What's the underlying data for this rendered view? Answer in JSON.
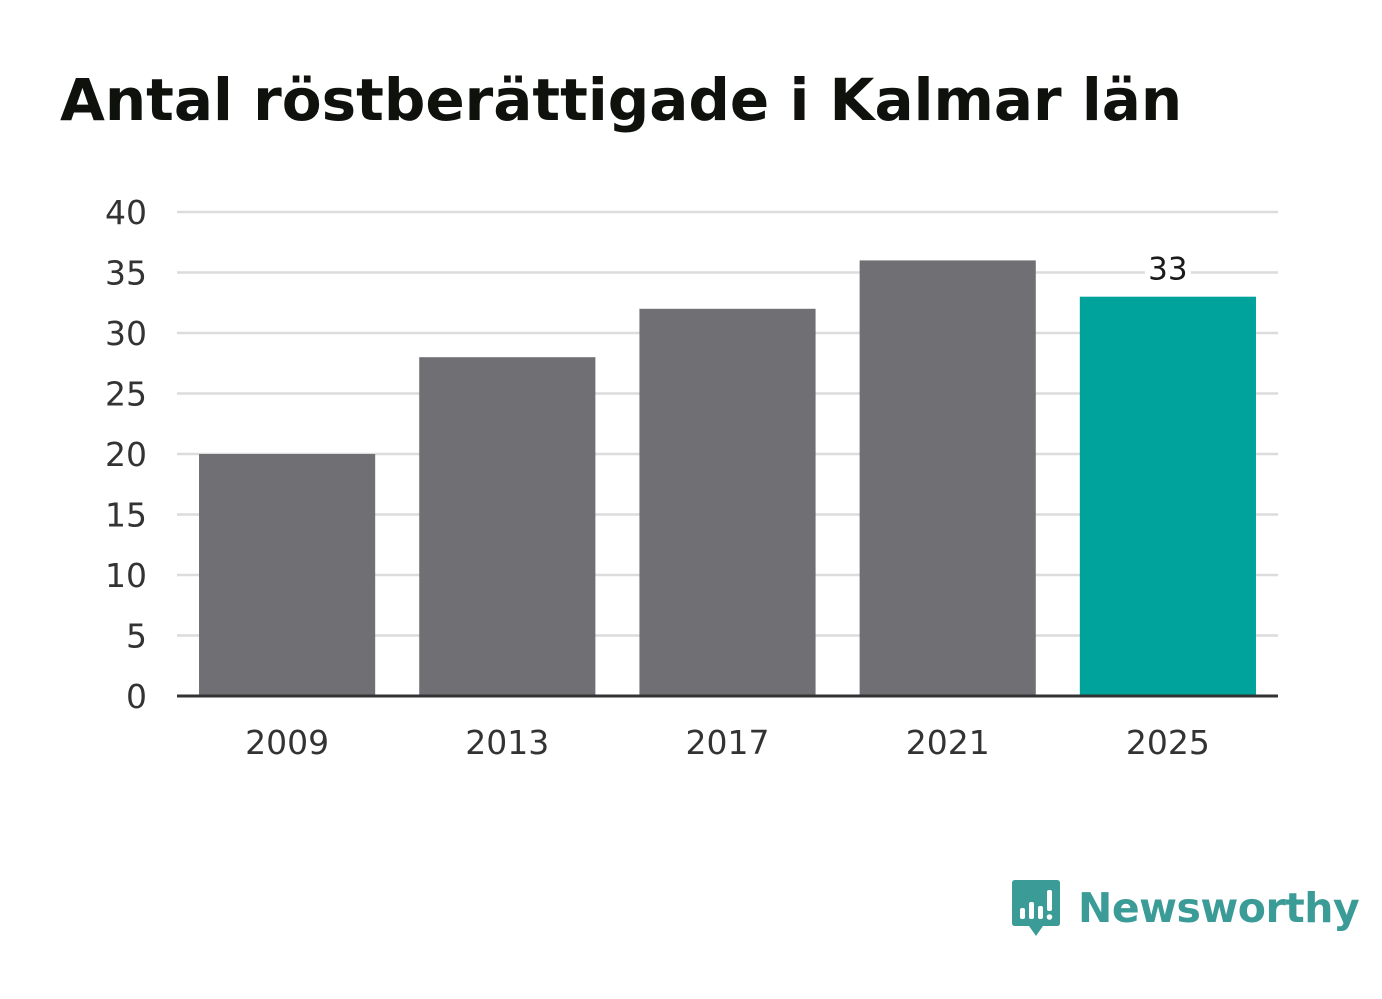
{
  "chart_data": {
    "type": "bar",
    "title": "Antal röstberättigade i Kalmar län",
    "categories": [
      "2009",
      "2013",
      "2017",
      "2021",
      "2025"
    ],
    "values": [
      20,
      28,
      32,
      36,
      33
    ],
    "ylim": [
      0,
      40
    ],
    "yticks": [
      0,
      5,
      10,
      15,
      20,
      25,
      30,
      35,
      40
    ],
    "grid": true,
    "highlight_index": 4,
    "labeled_index": 4,
    "colors": {
      "bar": "#706f74",
      "highlight": "#00a39b",
      "grid": "#dcdcdc",
      "axis": "#333333"
    }
  },
  "brand": {
    "name": "Newsworthy",
    "icon": "newsworthy-logo-icon",
    "color": "#3b9b96"
  }
}
